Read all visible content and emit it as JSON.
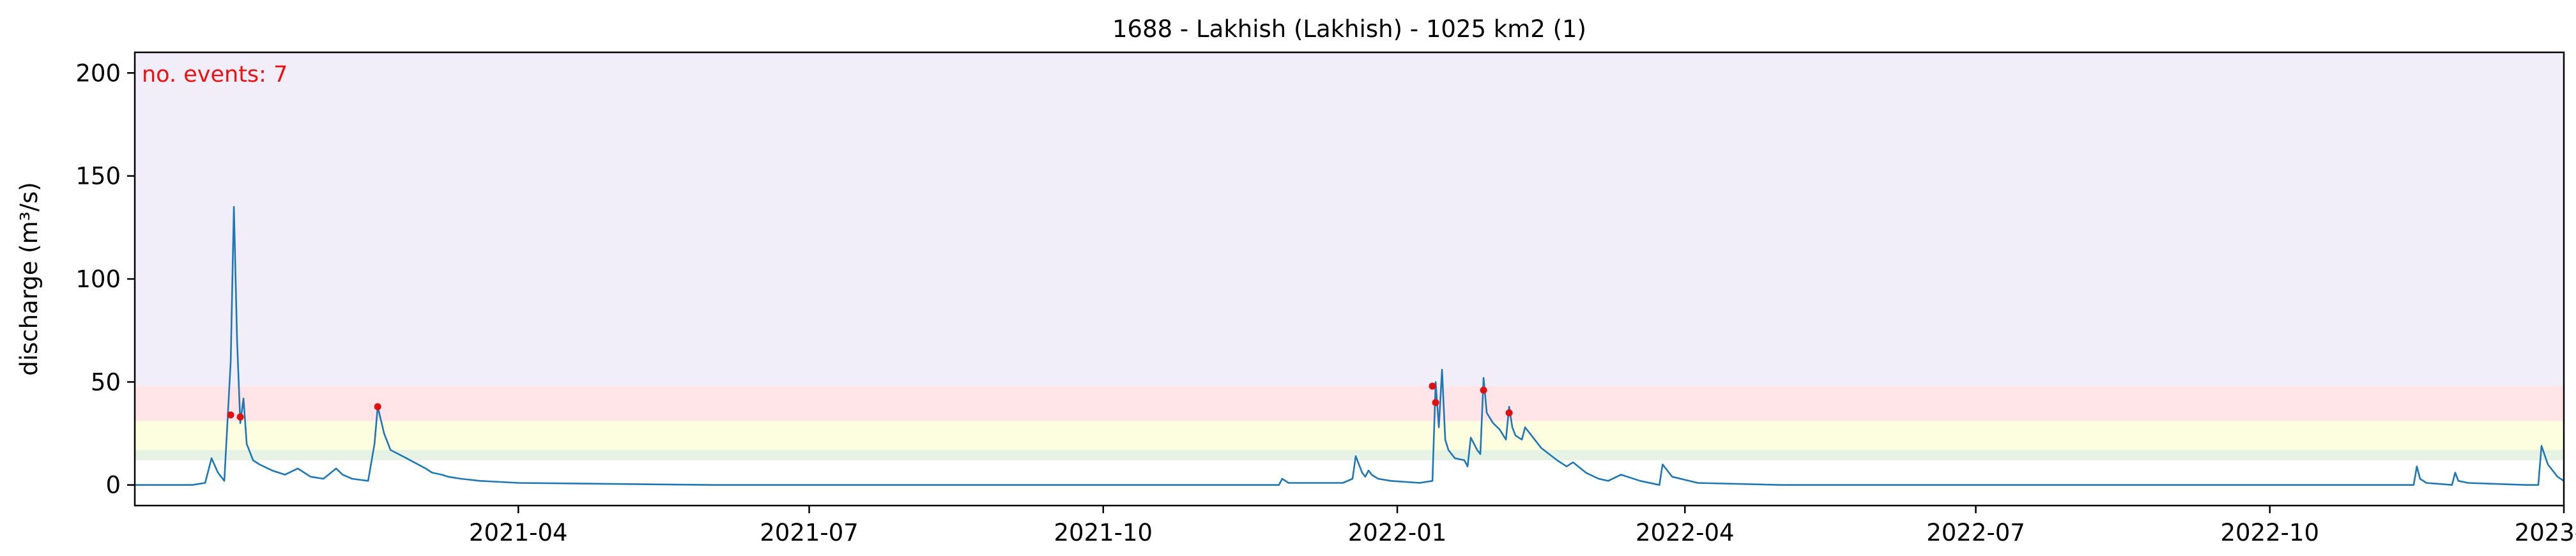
{
  "chart_data": {
    "type": "line",
    "title": "1688 - Lakhish (Lakhish) - 1025 km2 (1)",
    "xlabel": "",
    "ylabel": "discharge (m³/s)",
    "xlim": [
      "2020-12-02",
      "2023-01-01"
    ],
    "ylim": [
      -10,
      210
    ],
    "grid": false,
    "legend": "none",
    "x_ticks": [
      "2021-04",
      "2021-07",
      "2021-10",
      "2022-01",
      "2022-04",
      "2022-07",
      "2022-10",
      "2023-01"
    ],
    "x_tick_dates": [
      "2021-04-01",
      "2021-07-01",
      "2021-10-01",
      "2022-01-01",
      "2022-04-01",
      "2022-07-01",
      "2022-10-01",
      "2023-01-01"
    ],
    "y_ticks": [
      0,
      50,
      100,
      150,
      200
    ],
    "bands": [
      {
        "from": 12,
        "to": 17,
        "color": "#e6f2e4"
      },
      {
        "from": 17,
        "to": 31,
        "color": "#fdfde0"
      },
      {
        "from": 31,
        "to": 48,
        "color": "#ffe4e8"
      },
      {
        "from": 48,
        "to": 210,
        "color": "#f2eef9"
      }
    ],
    "annotation": {
      "text": "no. events: 7",
      "color": "#ee1111",
      "position": "top-left"
    },
    "series": [
      {
        "color": "#1f77b4",
        "x": [
          "2020-12-02",
          "2020-12-20",
          "2020-12-24",
          "2020-12-26",
          "2020-12-28",
          "2020-12-30",
          "2021-01-01",
          "2021-01-02",
          "2021-01-03",
          "2021-01-04",
          "2021-01-05",
          "2021-01-06",
          "2021-01-08",
          "2021-01-10",
          "2021-01-14",
          "2021-01-18",
          "2021-01-22",
          "2021-01-24",
          "2021-01-26",
          "2021-01-30",
          "2021-02-03",
          "2021-02-05",
          "2021-02-08",
          "2021-02-13",
          "2021-02-15",
          "2021-02-16",
          "2021-02-18",
          "2021-02-20",
          "2021-02-25",
          "2021-03-03",
          "2021-03-05",
          "2021-03-08",
          "2021-03-10",
          "2021-03-14",
          "2021-03-20",
          "2021-04-01",
          "2021-06-01",
          "2021-09-01",
          "2021-11-25",
          "2021-11-26",
          "2021-11-28",
          "2021-12-15",
          "2021-12-18",
          "2021-12-19",
          "2021-12-21",
          "2021-12-22",
          "2021-12-23",
          "2021-12-24",
          "2021-12-26",
          "2021-12-30",
          "2022-01-08",
          "2022-01-12",
          "2022-01-13",
          "2022-01-14",
          "2022-01-15",
          "2022-01-16",
          "2022-01-17",
          "2022-01-19",
          "2022-01-22",
          "2022-01-23",
          "2022-01-24",
          "2022-01-26",
          "2022-01-27",
          "2022-01-28",
          "2022-01-29",
          "2022-01-31",
          "2022-02-02",
          "2022-02-04",
          "2022-02-05",
          "2022-02-06",
          "2022-02-07",
          "2022-02-09",
          "2022-02-10",
          "2022-02-15",
          "2022-02-20",
          "2022-02-23",
          "2022-02-25",
          "2022-03-01",
          "2022-03-05",
          "2022-03-08",
          "2022-03-12",
          "2022-03-18",
          "2022-03-24",
          "2022-03-25",
          "2022-03-28",
          "2022-04-05",
          "2022-05-01",
          "2022-07-01",
          "2022-09-01",
          "2022-11-15",
          "2022-11-16",
          "2022-11-17",
          "2022-11-19",
          "2022-11-27",
          "2022-11-28",
          "2022-11-29",
          "2022-12-02",
          "2022-12-20",
          "2022-12-24",
          "2022-12-25",
          "2022-12-27",
          "2022-12-30",
          "2023-01-01"
        ],
        "y": [
          0,
          0,
          1,
          13,
          6,
          2,
          60,
          135,
          70,
          30,
          42,
          20,
          12,
          10,
          7,
          5,
          8,
          6,
          4,
          3,
          8,
          5,
          3,
          2,
          20,
          38,
          25,
          17,
          13,
          8,
          6,
          5,
          4,
          3,
          2,
          1,
          0,
          0,
          0,
          3,
          1,
          1,
          3,
          14,
          6,
          4,
          7,
          5,
          3,
          2,
          1,
          2,
          50,
          28,
          56,
          22,
          17,
          13,
          12,
          9,
          23,
          17,
          15,
          52,
          35,
          30,
          27,
          22,
          38,
          28,
          24,
          22,
          28,
          18,
          12,
          9,
          11,
          6,
          3,
          2,
          5,
          2,
          0,
          10,
          4,
          1,
          0,
          0,
          0,
          0,
          9,
          3,
          1,
          0,
          6,
          2,
          1,
          0,
          0,
          19,
          10,
          4,
          2
        ]
      }
    ],
    "events": {
      "color": "#dd1111",
      "x": [
        "2021-01-01",
        "2021-01-04",
        "2021-02-16",
        "2022-01-12",
        "2022-01-13",
        "2022-01-28",
        "2022-02-05"
      ],
      "y": [
        34,
        33,
        38,
        48,
        40,
        46,
        35
      ]
    }
  }
}
